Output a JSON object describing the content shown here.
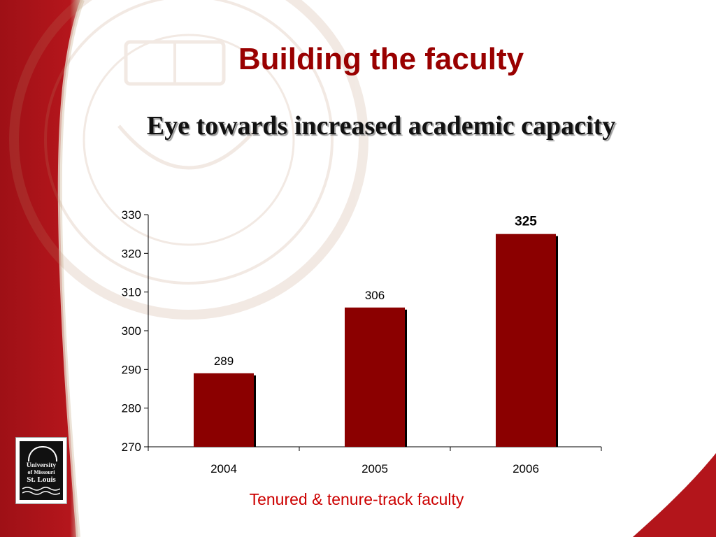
{
  "slide": {
    "title": "Building the faculty",
    "subtitle": "Eye towards increased academic capacity",
    "caption": "Tenured & tenure-track faculty"
  },
  "logo": {
    "line1": "University",
    "line2": "of Missouri",
    "line3": "St. Louis"
  },
  "colors": {
    "title": "#990000",
    "bar": "#8b0000",
    "caption": "#cc0000",
    "sidebar": "#b3151b"
  },
  "chart_data": {
    "type": "bar",
    "categories": [
      "2004",
      "2005",
      "2006"
    ],
    "values": [
      289,
      306,
      325
    ],
    "data_labels": [
      "289",
      "306",
      "325"
    ],
    "highlighted_label_index": 2,
    "title": "",
    "xlabel": "Tenured & tenure-track faculty",
    "ylabel": "",
    "ylim": [
      270,
      330
    ],
    "yticks": [
      270,
      280,
      290,
      300,
      310,
      320,
      330
    ],
    "grid": false,
    "legend": "none"
  }
}
